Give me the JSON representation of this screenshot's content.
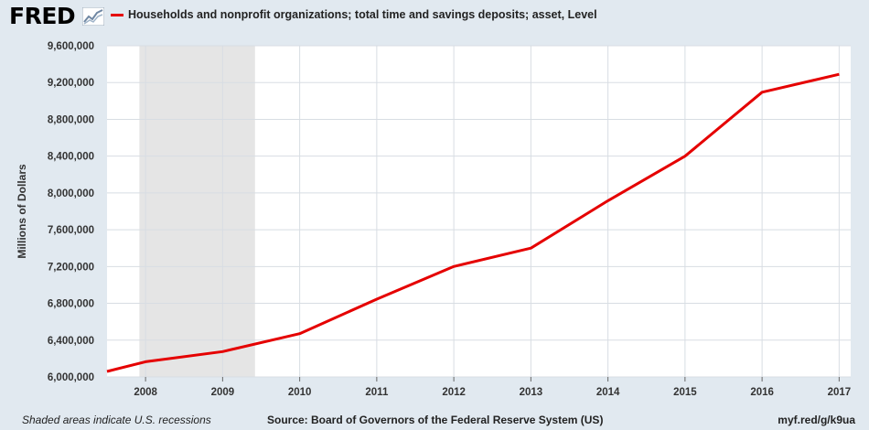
{
  "header": {
    "logo_text": "FRED",
    "logo_icon": "trend-graph-icon"
  },
  "colors": {
    "background": "#e1e9f0",
    "plot_bg": "#ffffff",
    "series": "#e50000",
    "recession": "#e5e5e5",
    "grid": "#d8dde3"
  },
  "chart_data": {
    "type": "line",
    "series": [
      {
        "name": "Households and nonprofit organizations; total time and savings deposits; asset, Level",
        "points": [
          {
            "x": 2007.5,
            "y": 6060000
          },
          {
            "x": 2008.0,
            "y": 6165000
          },
          {
            "x": 2009.0,
            "y": 6275000
          },
          {
            "x": 2010.0,
            "y": 6470000
          },
          {
            "x": 2011.0,
            "y": 6845000
          },
          {
            "x": 2012.0,
            "y": 7200000
          },
          {
            "x": 2013.0,
            "y": 7400000
          },
          {
            "x": 2014.0,
            "y": 7915000
          },
          {
            "x": 2015.0,
            "y": 8400000
          },
          {
            "x": 2016.0,
            "y": 9095000
          },
          {
            "x": 2017.0,
            "y": 9290000
          }
        ]
      }
    ],
    "xlim": [
      2007.5,
      2017.15
    ],
    "ylim": [
      6000000,
      9600000
    ],
    "x_ticks": [
      2008,
      2009,
      2010,
      2011,
      2012,
      2013,
      2014,
      2015,
      2016,
      2017
    ],
    "y_ticks": [
      "6,000,000",
      "6,400,000",
      "6,800,000",
      "7,200,000",
      "7,600,000",
      "8,000,000",
      "8,400,000",
      "8,800,000",
      "9,200,000",
      "9,600,000"
    ],
    "y_tick_values": [
      6000000,
      6400000,
      6800000,
      7200000,
      7600000,
      8000000,
      8400000,
      8800000,
      9200000,
      9600000
    ],
    "ylabel": "Millions of Dollars",
    "xlabel": "",
    "recession": {
      "start": 2007.92,
      "end": 2009.42
    },
    "grid": true,
    "legend_position": "top-left"
  },
  "footer": {
    "note": "Shaded areas indicate U.S. recessions",
    "source": "Source: Board of Governors of the Federal Reserve System (US)",
    "link": "myf.red/g/k9ua"
  }
}
